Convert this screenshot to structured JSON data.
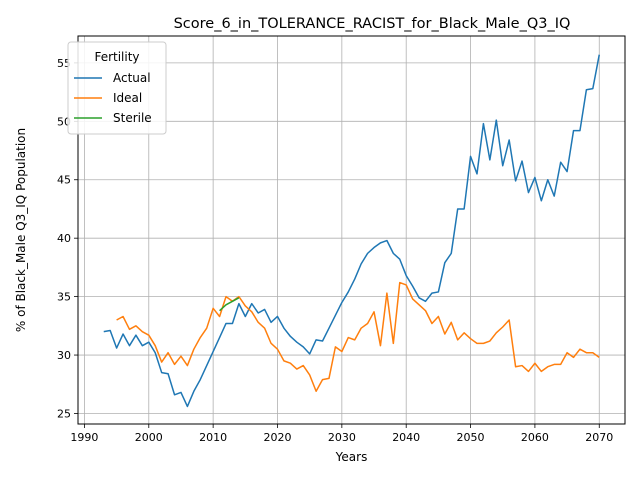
{
  "chart_data": {
    "type": "line",
    "title": "Score_6_in_TOLERANCE_RACIST_for_Black_Male_Q3_IQ",
    "xlabel": "Years",
    "ylabel": "% of Black_Male Q3_IQ Population",
    "xlim": [
      1989,
      2074
    ],
    "ylim": [
      24.1,
      57.3
    ],
    "xticks": [
      1990,
      2000,
      2010,
      2020,
      2030,
      2040,
      2050,
      2060,
      2070
    ],
    "yticks": [
      25,
      30,
      35,
      40,
      45,
      50,
      55
    ],
    "grid": true,
    "legend": {
      "title": "Fertility",
      "placement": "top-left"
    },
    "series": [
      {
        "name": "Actual",
        "color": "#1f77b4",
        "x": [
          1993,
          1994,
          1995,
          1996,
          1997,
          1998,
          1999,
          2000,
          2001,
          2002,
          2003,
          2004,
          2005,
          2006,
          2007,
          2008,
          2009,
          2010,
          2011,
          2012,
          2013,
          2014,
          2015,
          2016,
          2017,
          2018,
          2019,
          2020,
          2021,
          2022,
          2023,
          2024,
          2025,
          2026,
          2027,
          2028,
          2029,
          2030,
          2031,
          2032,
          2033,
          2034,
          2035,
          2036,
          2037,
          2038,
          2039,
          2040,
          2041,
          2042,
          2043,
          2044,
          2045,
          2046,
          2047,
          2048,
          2049,
          2050,
          2051,
          2052,
          2053,
          2054,
          2055,
          2056,
          2057,
          2058,
          2059,
          2060,
          2061,
          2062,
          2063,
          2064,
          2065,
          2066,
          2067,
          2068,
          2069,
          2070
        ],
        "y": [
          32.0,
          32.1,
          30.6,
          31.8,
          30.8,
          31.7,
          30.8,
          31.1,
          30.2,
          28.5,
          28.4,
          26.6,
          26.8,
          25.6,
          26.9,
          27.9,
          29.1,
          30.3,
          31.5,
          32.7,
          32.7,
          34.4,
          33.3,
          34.4,
          33.6,
          33.9,
          32.8,
          33.3,
          32.3,
          31.6,
          31.1,
          30.7,
          30.1,
          31.3,
          31.2,
          32.3,
          33.4,
          34.5,
          35.4,
          36.5,
          37.8,
          38.7,
          39.2,
          39.6,
          39.8,
          38.7,
          38.2,
          36.8,
          35.9,
          34.9,
          34.6,
          35.3,
          35.4,
          37.9,
          38.7,
          42.5,
          42.5,
          47.0,
          45.5,
          49.8,
          46.7,
          50.1,
          46.2,
          48.4,
          44.9,
          46.6,
          43.9,
          45.2,
          43.2,
          45.0,
          43.6,
          46.5,
          45.7,
          49.2,
          49.2,
          52.7,
          52.8,
          55.7
        ]
      },
      {
        "name": "Ideal",
        "color": "#ff7f0e",
        "x": [
          1995,
          1996,
          1997,
          1998,
          1999,
          2000,
          2001,
          2002,
          2003,
          2004,
          2005,
          2006,
          2007,
          2008,
          2009,
          2010,
          2011,
          2012,
          2013,
          2014,
          2015,
          2016,
          2017,
          2018,
          2019,
          2020,
          2021,
          2022,
          2023,
          2024,
          2025,
          2026,
          2027,
          2028,
          2029,
          2030,
          2031,
          2032,
          2033,
          2034,
          2035,
          2036,
          2037,
          2038,
          2039,
          2040,
          2041,
          2042,
          2043,
          2044,
          2045,
          2046,
          2047,
          2048,
          2049,
          2050,
          2051,
          2052,
          2053,
          2054,
          2055,
          2056,
          2057,
          2058,
          2059,
          2060,
          2061,
          2062,
          2063,
          2064,
          2065,
          2066,
          2067,
          2068,
          2069,
          2070
        ],
        "y": [
          33.0,
          33.3,
          32.2,
          32.5,
          32.0,
          31.7,
          30.8,
          29.4,
          30.2,
          29.2,
          29.9,
          29.1,
          30.5,
          31.5,
          32.3,
          34.0,
          33.3,
          35.0,
          34.6,
          35.0,
          34.2,
          33.7,
          32.8,
          32.3,
          31.0,
          30.5,
          29.5,
          29.3,
          28.8,
          29.1,
          28.3,
          26.9,
          27.9,
          28.0,
          30.7,
          30.3,
          31.5,
          31.3,
          32.3,
          32.7,
          33.7,
          30.8,
          35.3,
          31.0,
          36.2,
          36.0,
          34.8,
          34.3,
          33.8,
          32.7,
          33.3,
          31.8,
          32.8,
          31.3,
          31.9,
          31.4,
          31.0,
          31.0,
          31.2,
          31.9,
          32.4,
          33.0,
          29.0,
          29.1,
          28.6,
          29.3,
          28.6,
          29.0,
          29.2,
          29.2,
          30.2,
          29.8,
          30.5,
          30.2,
          30.2,
          29.8
        ]
      },
      {
        "name": "Sterile",
        "color": "#2ca02c",
        "x": [
          2011,
          2012,
          2013,
          2014
        ],
        "y": [
          33.8,
          34.3,
          34.6,
          34.9
        ]
      }
    ]
  }
}
